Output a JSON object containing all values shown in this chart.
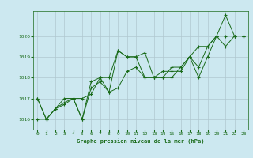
{
  "title": "Graphe pression niveau de la mer (hPa)",
  "bg_color": "#cce8f0",
  "grid_color": "#b0c8d0",
  "line_color": "#1a6b1a",
  "marker_color": "#1a6b1a",
  "xlim": [
    -0.5,
    23.5
  ],
  "ylim": [
    1015.5,
    1021.2
  ],
  "yticks": [
    1016,
    1017,
    1018,
    1019,
    1020
  ],
  "xticks": [
    0,
    1,
    2,
    3,
    4,
    5,
    6,
    7,
    8,
    9,
    10,
    11,
    12,
    13,
    14,
    15,
    16,
    17,
    18,
    19,
    20,
    21,
    22,
    23
  ],
  "series": [
    [
      1016.0,
      1016.0,
      1016.5,
      1016.7,
      1017.0,
      1016.0,
      1017.5,
      1017.8,
      1017.3,
      1019.3,
      1019.0,
      1019.0,
      1019.2,
      1018.0,
      1018.0,
      1018.0,
      1018.5,
      1019.0,
      1018.0,
      1019.0,
      1020.0,
      1021.0,
      1020.0,
      1020.0
    ],
    [
      1017.0,
      1016.0,
      1016.5,
      1016.8,
      1017.0,
      1017.0,
      1017.2,
      1018.0,
      1017.3,
      1017.5,
      1018.3,
      1018.5,
      1018.0,
      1018.0,
      1018.0,
      1018.5,
      1018.5,
      1019.0,
      1019.5,
      1019.5,
      1020.0,
      1019.5,
      1020.0,
      1020.0
    ],
    [
      1017.0,
      1016.0,
      1016.5,
      1017.0,
      1017.0,
      1016.0,
      1017.8,
      1018.0,
      1018.0,
      1019.3,
      1019.0,
      1019.0,
      1018.0,
      1018.0,
      1018.3,
      1018.3,
      1018.3,
      1019.0,
      1018.5,
      1019.5,
      1020.0,
      1020.0,
      1020.0,
      1020.0
    ]
  ]
}
